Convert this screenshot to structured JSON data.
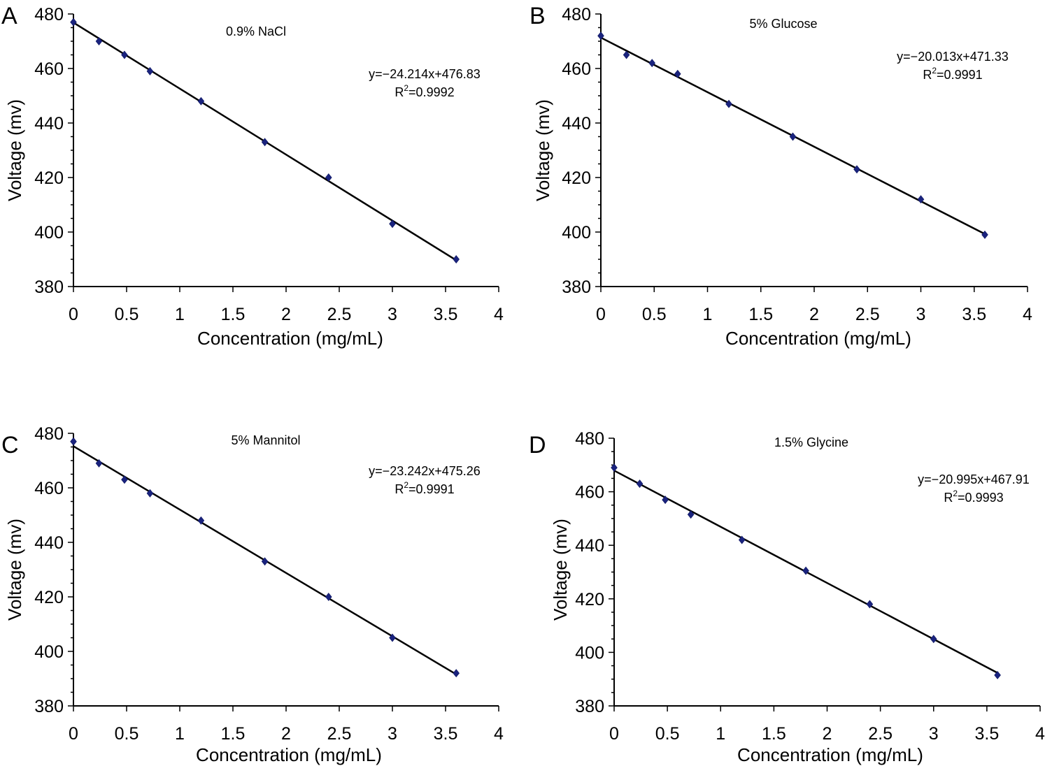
{
  "chart_data": [
    {
      "type": "scatter",
      "panel_letter": "A",
      "title": "0.9% NaCl",
      "xlabel": "Concentration (mg/mL)",
      "ylabel": "Voltage (mv)",
      "xlim": [
        0,
        4
      ],
      "ylim": [
        380,
        480
      ],
      "xticks": [
        "0",
        "0.5",
        "1",
        "1.5",
        "2",
        "2.5",
        "3",
        "3.5",
        "4"
      ],
      "yticks": [
        "380",
        "400",
        "420",
        "440",
        "460",
        "480"
      ],
      "x": [
        0,
        0.24,
        0.48,
        0.72,
        1.2,
        1.8,
        2.4,
        3.0,
        3.6
      ],
      "y": [
        477,
        470,
        465,
        459,
        448,
        433,
        420,
        403,
        390
      ],
      "trendline": {
        "slope": -24.214,
        "intercept": 476.83
      },
      "equation": "y=−24.214x+476.83",
      "r2_label": "R",
      "r2_sup": "2",
      "r2_value": "=0.9992",
      "grid": false,
      "point_color": "#1a237e"
    },
    {
      "type": "scatter",
      "panel_letter": "B",
      "title": "5% Glucose",
      "xlabel": "Concentration (mg/mL)",
      "ylabel": "Voltage (mv)",
      "xlim": [
        0,
        4
      ],
      "ylim": [
        380,
        480
      ],
      "xticks": [
        "0",
        "0.5",
        "1",
        "1.5",
        "2",
        "2.5",
        "3",
        "3.5",
        "4"
      ],
      "yticks": [
        "380",
        "400",
        "420",
        "440",
        "460",
        "480"
      ],
      "x": [
        0,
        0.24,
        0.48,
        0.72,
        1.2,
        1.8,
        2.4,
        3.0,
        3.6
      ],
      "y": [
        472,
        465,
        462,
        458,
        447,
        435,
        423,
        412,
        399
      ],
      "trendline": {
        "slope": -20.013,
        "intercept": 471.33
      },
      "equation": "y=−20.013x+471.33",
      "r2_label": "R",
      "r2_sup": "2",
      "r2_value": "=0.9991",
      "grid": false,
      "point_color": "#1a237e"
    },
    {
      "type": "scatter",
      "panel_letter": "C",
      "title": "5% Mannitol",
      "xlabel": "Concentration (mg/mL)",
      "ylabel": "Voltage (mv)",
      "xlim": [
        0,
        4
      ],
      "ylim": [
        380,
        480
      ],
      "xticks": [
        "0",
        "0.5",
        "1",
        "1.5",
        "2",
        "2.5",
        "3",
        "3.5",
        "4"
      ],
      "yticks": [
        "380",
        "400",
        "420",
        "440",
        "460",
        "480"
      ],
      "x": [
        0,
        0.24,
        0.48,
        0.72,
        1.2,
        1.8,
        2.4,
        3.0,
        3.6
      ],
      "y": [
        477,
        469,
        463,
        458,
        448,
        433,
        420,
        405,
        392
      ],
      "trendline": {
        "slope": -23.242,
        "intercept": 475.26
      },
      "equation": "y=−23.242x+475.26",
      "r2_label": "R",
      "r2_sup": "2",
      "r2_value": "=0.9991",
      "grid": false,
      "point_color": "#1a237e"
    },
    {
      "type": "scatter",
      "panel_letter": "D",
      "title": "1.5% Glycine",
      "xlabel": "Concentration (mg/mL)",
      "ylabel": "Voltage (mv)",
      "xlim": [
        0,
        4
      ],
      "ylim": [
        380,
        480
      ],
      "xticks": [
        "0",
        "0.5",
        "1",
        "1.5",
        "2",
        "2.5",
        "3",
        "3.5",
        "4"
      ],
      "yticks": [
        "380",
        "400",
        "420",
        "440",
        "460",
        "480"
      ],
      "x": [
        0,
        0.24,
        0.48,
        0.72,
        1.2,
        1.8,
        2.4,
        3.0,
        3.6
      ],
      "y": [
        469,
        463,
        457,
        451.5,
        442,
        430.5,
        418,
        405,
        391.5
      ],
      "trendline": {
        "slope": -20.995,
        "intercept": 467.91
      },
      "equation": "y=−20.995x+467.91",
      "r2_label": "R",
      "r2_sup": "2",
      "r2_value": "=0.9993",
      "grid": false,
      "point_color": "#1a237e"
    }
  ]
}
